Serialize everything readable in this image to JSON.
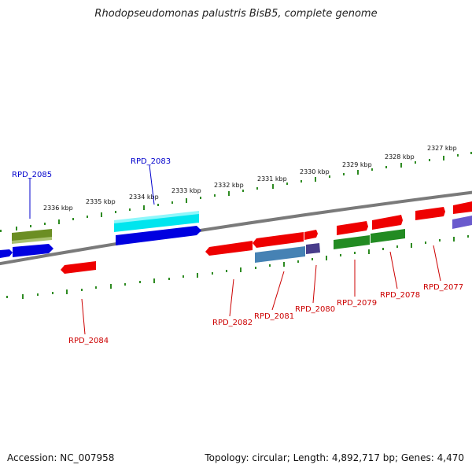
{
  "title": "Rhodopseudomonas palustris BisB5, complete genome",
  "footer": {
    "accession": "Accession: NC_007958",
    "topology": "Topology: circular; Length: 4,892,717 bp; Genes: 4,470"
  },
  "tick_labels": [
    "2327 kbp",
    "2328 kbp",
    "2329 kbp",
    "2330 kbp",
    "2331 kbp",
    "2332 kbp",
    "2333 kbp",
    "2334 kbp",
    "2335 kbp",
    "2336 kbp"
  ],
  "gene_labels": {
    "top": [
      "RPD_2085",
      "RPD_2083"
    ],
    "bottom": [
      "RPD_2084",
      "RPD_2082",
      "RPD_2081",
      "RPD_2080",
      "RPD_2079",
      "RPD_2078",
      "RPD_2077"
    ]
  },
  "colors": {
    "forward_label": "#0000cc",
    "reverse_label": "#cc0000",
    "tick": "#2e8b22",
    "backbone": "#777777"
  }
}
